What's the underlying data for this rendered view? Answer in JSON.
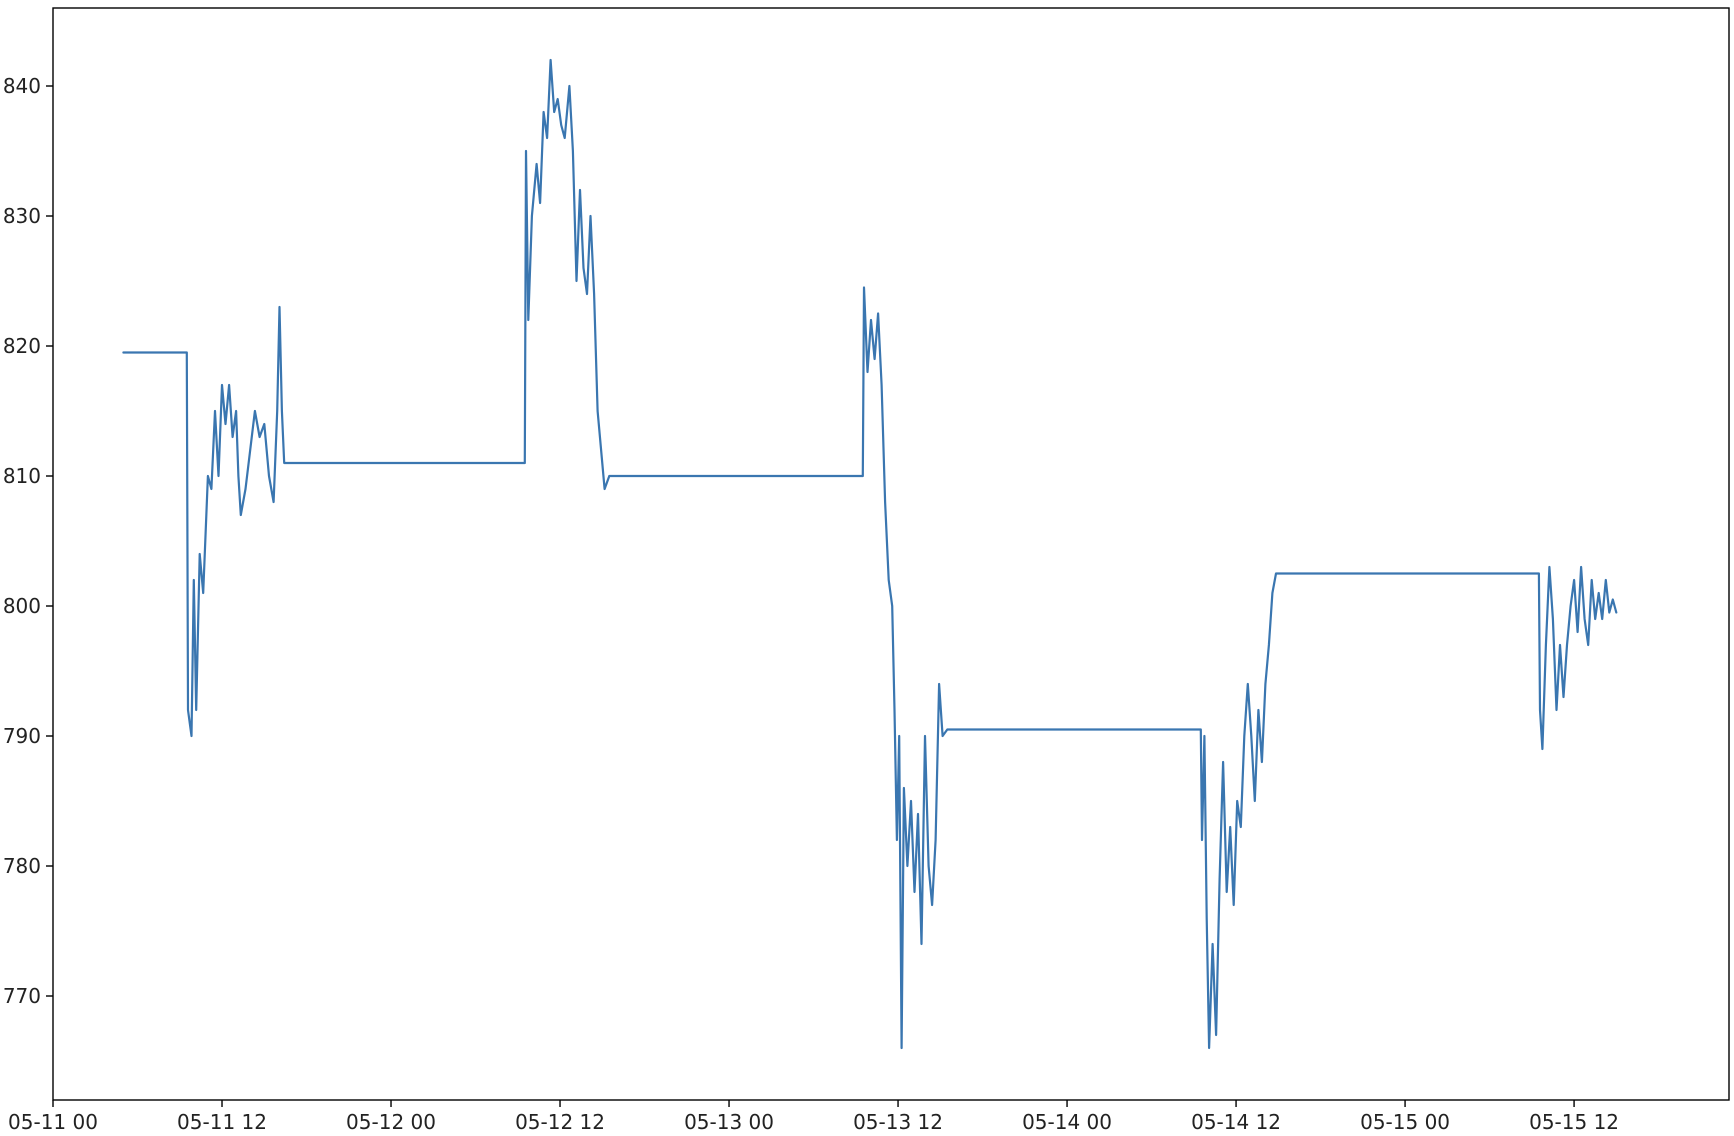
{
  "chart_data": {
    "type": "line",
    "title": "",
    "xlabel": "",
    "ylabel": "",
    "grid": false,
    "legend": "none",
    "xlim": [
      "2017-05-11 00:00",
      "2017-05-15 23:00"
    ],
    "ylim": [
      762,
      846
    ],
    "x_ticks": [
      {
        "t": "2017-05-11 00:00",
        "label": "05-11 00"
      },
      {
        "t": "2017-05-11 12:00",
        "label": "05-11 12"
      },
      {
        "t": "2017-05-12 00:00",
        "label": "05-12 00"
      },
      {
        "t": "2017-05-12 12:00",
        "label": "05-12 12"
      },
      {
        "t": "2017-05-13 00:00",
        "label": "05-13 00"
      },
      {
        "t": "2017-05-13 12:00",
        "label": "05-13 12"
      },
      {
        "t": "2017-05-14 00:00",
        "label": "05-14 00"
      },
      {
        "t": "2017-05-14 12:00",
        "label": "05-14 12"
      },
      {
        "t": "2017-05-15 00:00",
        "label": "05-15 00"
      },
      {
        "t": "2017-05-15 12:00",
        "label": "05-15 12"
      }
    ],
    "y_ticks": [
      {
        "v": 770,
        "label": "770"
      },
      {
        "v": 780,
        "label": "780"
      },
      {
        "v": 790,
        "label": "790"
      },
      {
        "v": 800,
        "label": "800"
      },
      {
        "v": 810,
        "label": "810"
      },
      {
        "v": 820,
        "label": "820"
      },
      {
        "v": 830,
        "label": "830"
      },
      {
        "v": 840,
        "label": "840"
      }
    ],
    "series": [
      {
        "color": "#3a76b0",
        "points": [
          [
            "2017-05-11 05:00",
            819.5
          ],
          [
            "2017-05-11 09:30",
            819.5
          ],
          [
            "2017-05-11 09:35",
            792.0
          ],
          [
            "2017-05-11 09:50",
            790.0
          ],
          [
            "2017-05-11 10:00",
            802.0
          ],
          [
            "2017-05-11 10:10",
            792.0
          ],
          [
            "2017-05-11 10:25",
            804.0
          ],
          [
            "2017-05-11 10:40",
            801.0
          ],
          [
            "2017-05-11 11:00",
            810.0
          ],
          [
            "2017-05-11 11:15",
            809.0
          ],
          [
            "2017-05-11 11:30",
            815.0
          ],
          [
            "2017-05-11 11:45",
            810.0
          ],
          [
            "2017-05-11 12:00",
            817.0
          ],
          [
            "2017-05-11 12:15",
            814.0
          ],
          [
            "2017-05-11 12:30",
            817.0
          ],
          [
            "2017-05-11 12:45",
            813.0
          ],
          [
            "2017-05-11 13:00",
            815.0
          ],
          [
            "2017-05-11 13:10",
            810.0
          ],
          [
            "2017-05-11 13:20",
            807.0
          ],
          [
            "2017-05-11 13:40",
            809.0
          ],
          [
            "2017-05-11 14:00",
            812.0
          ],
          [
            "2017-05-11 14:20",
            815.0
          ],
          [
            "2017-05-11 14:40",
            813.0
          ],
          [
            "2017-05-11 15:00",
            814.0
          ],
          [
            "2017-05-11 15:20",
            810.0
          ],
          [
            "2017-05-11 15:40",
            808.0
          ],
          [
            "2017-05-11 15:55",
            815.0
          ],
          [
            "2017-05-11 16:05",
            823.0
          ],
          [
            "2017-05-11 16:15",
            815.0
          ],
          [
            "2017-05-11 16:25",
            811.0
          ],
          [
            "2017-05-11 19:00",
            811.0
          ],
          [
            "2017-05-12 09:30",
            811.0
          ],
          [
            "2017-05-12 09:35",
            835.0
          ],
          [
            "2017-05-12 09:45",
            822.0
          ],
          [
            "2017-05-12 10:00",
            830.0
          ],
          [
            "2017-05-12 10:20",
            834.0
          ],
          [
            "2017-05-12 10:35",
            831.0
          ],
          [
            "2017-05-12 10:50",
            838.0
          ],
          [
            "2017-05-12 11:05",
            836.0
          ],
          [
            "2017-05-12 11:20",
            842.0
          ],
          [
            "2017-05-12 11:35",
            838.0
          ],
          [
            "2017-05-12 11:50",
            839.0
          ],
          [
            "2017-05-12 12:05",
            837.0
          ],
          [
            "2017-05-12 12:20",
            836.0
          ],
          [
            "2017-05-12 12:40",
            840.0
          ],
          [
            "2017-05-12 12:55",
            835.0
          ],
          [
            "2017-05-12 13:10",
            825.0
          ],
          [
            "2017-05-12 13:25",
            832.0
          ],
          [
            "2017-05-12 13:40",
            826.0
          ],
          [
            "2017-05-12 13:55",
            824.0
          ],
          [
            "2017-05-12 14:10",
            830.0
          ],
          [
            "2017-05-12 14:25",
            824.0
          ],
          [
            "2017-05-12 14:40",
            815.0
          ],
          [
            "2017-05-12 14:55",
            812.0
          ],
          [
            "2017-05-12 15:10",
            809.0
          ],
          [
            "2017-05-12 15:30",
            810.0
          ],
          [
            "2017-05-13 09:30",
            810.0
          ],
          [
            "2017-05-13 09:35",
            824.5
          ],
          [
            "2017-05-13 09:50",
            818.0
          ],
          [
            "2017-05-13 10:05",
            822.0
          ],
          [
            "2017-05-13 10:20",
            819.0
          ],
          [
            "2017-05-13 10:35",
            822.5
          ],
          [
            "2017-05-13 10:50",
            817.0
          ],
          [
            "2017-05-13 11:05",
            808.0
          ],
          [
            "2017-05-13 11:20",
            802.0
          ],
          [
            "2017-05-13 11:35",
            800.0
          ],
          [
            "2017-05-13 11:45",
            792.0
          ],
          [
            "2017-05-13 11:55",
            782.0
          ],
          [
            "2017-05-13 12:05",
            790.0
          ],
          [
            "2017-05-13 12:15",
            766.0
          ],
          [
            "2017-05-13 12:25",
            786.0
          ],
          [
            "2017-05-13 12:40",
            780.0
          ],
          [
            "2017-05-13 12:55",
            785.0
          ],
          [
            "2017-05-13 13:10",
            778.0
          ],
          [
            "2017-05-13 13:25",
            784.0
          ],
          [
            "2017-05-13 13:40",
            774.0
          ],
          [
            "2017-05-13 13:55",
            790.0
          ],
          [
            "2017-05-13 14:10",
            780.0
          ],
          [
            "2017-05-13 14:25",
            777.0
          ],
          [
            "2017-05-13 14:40",
            782.0
          ],
          [
            "2017-05-13 14:55",
            794.0
          ],
          [
            "2017-05-13 15:10",
            790.0
          ],
          [
            "2017-05-13 15:30",
            790.5
          ],
          [
            "2017-05-14 09:30",
            790.5
          ],
          [
            "2017-05-14 09:35",
            782.0
          ],
          [
            "2017-05-14 09:45",
            790.0
          ],
          [
            "2017-05-14 09:55",
            776.0
          ],
          [
            "2017-05-14 10:05",
            766.0
          ],
          [
            "2017-05-14 10:20",
            774.0
          ],
          [
            "2017-05-14 10:35",
            767.0
          ],
          [
            "2017-05-14 10:50",
            779.0
          ],
          [
            "2017-05-14 11:05",
            788.0
          ],
          [
            "2017-05-14 11:20",
            778.0
          ],
          [
            "2017-05-14 11:35",
            783.0
          ],
          [
            "2017-05-14 11:50",
            777.0
          ],
          [
            "2017-05-14 12:05",
            785.0
          ],
          [
            "2017-05-14 12:20",
            783.0
          ],
          [
            "2017-05-14 12:35",
            790.0
          ],
          [
            "2017-05-14 12:50",
            794.0
          ],
          [
            "2017-05-14 13:05",
            790.0
          ],
          [
            "2017-05-14 13:20",
            785.0
          ],
          [
            "2017-05-14 13:35",
            792.0
          ],
          [
            "2017-05-14 13:50",
            788.0
          ],
          [
            "2017-05-14 14:05",
            794.0
          ],
          [
            "2017-05-14 14:20",
            797.0
          ],
          [
            "2017-05-14 14:35",
            801.0
          ],
          [
            "2017-05-14 14:50",
            802.5
          ],
          [
            "2017-05-15 09:30",
            802.5
          ],
          [
            "2017-05-15 09:35",
            792.0
          ],
          [
            "2017-05-15 09:45",
            789.0
          ],
          [
            "2017-05-15 10:00",
            797.0
          ],
          [
            "2017-05-15 10:15",
            803.0
          ],
          [
            "2017-05-15 10:30",
            799.0
          ],
          [
            "2017-05-15 10:45",
            792.0
          ],
          [
            "2017-05-15 11:00",
            797.0
          ],
          [
            "2017-05-15 11:15",
            793.0
          ],
          [
            "2017-05-15 11:30",
            797.0
          ],
          [
            "2017-05-15 11:45",
            800.0
          ],
          [
            "2017-05-15 12:00",
            802.0
          ],
          [
            "2017-05-15 12:15",
            798.0
          ],
          [
            "2017-05-15 12:30",
            803.0
          ],
          [
            "2017-05-15 12:45",
            799.0
          ],
          [
            "2017-05-15 13:00",
            797.0
          ],
          [
            "2017-05-15 13:15",
            802.0
          ],
          [
            "2017-05-15 13:30",
            799.0
          ],
          [
            "2017-05-15 13:45",
            801.0
          ],
          [
            "2017-05-15 14:00",
            799.0
          ],
          [
            "2017-05-15 14:15",
            802.0
          ],
          [
            "2017-05-15 14:30",
            799.5
          ],
          [
            "2017-05-15 14:45",
            800.5
          ],
          [
            "2017-05-15 15:00",
            799.5
          ]
        ]
      }
    ]
  }
}
